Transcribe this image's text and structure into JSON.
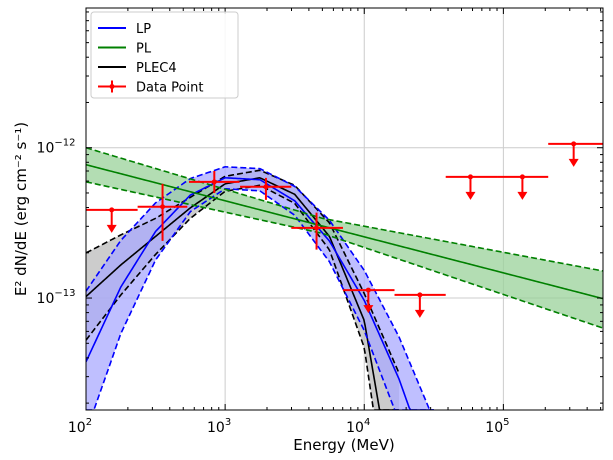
{
  "chart_data": {
    "type": "line",
    "title": "",
    "xlabel": "Energy (MeV)",
    "ylabel": "E² dN/dE (erg cm⁻² s⁻¹)",
    "xscale": "log",
    "yscale": "log",
    "xlim": [
      100,
      520000
    ],
    "ylim": [
      1.8e-14,
      8.5e-12
    ],
    "grid": true,
    "legend_position": "top-left",
    "x_ticks": [
      {
        "base": "10",
        "exp": "2",
        "value": 100
      },
      {
        "base": "10",
        "exp": "3",
        "value": 1000
      },
      {
        "base": "10",
        "exp": "4",
        "value": 10000
      },
      {
        "base": "10",
        "exp": "5",
        "value": 100000
      }
    ],
    "y_ticks": [
      {
        "base": "10",
        "exp": "−13",
        "value": 1e-13
      },
      {
        "base": "10",
        "exp": "−12",
        "value": 1e-12
      }
    ],
    "models": [
      {
        "name": "LP",
        "color": "#0000ff",
        "fill": "#aaaaff",
        "log10_x": [
          2.0,
          2.25,
          2.5,
          2.75,
          3.0,
          3.25,
          3.5,
          3.75,
          4.0,
          4.25,
          4.5
        ],
        "log10_y": [
          -13.424,
          -12.927,
          -12.557,
          -12.315,
          -12.2,
          -12.213,
          -12.353,
          -12.621,
          -13.016,
          -13.539,
          -14.19
        ],
        "log10_y_upper": [
          -12.954,
          -12.617,
          -12.367,
          -12.205,
          -12.127,
          -12.139,
          -12.257,
          -12.483,
          -12.816,
          -13.259,
          -13.81
        ],
        "log10_y_lower": [
          -13.894,
          -13.237,
          -12.747,
          -12.425,
          -12.273,
          -12.287,
          -12.449,
          -12.759,
          -13.216,
          -13.819,
          -14.57
        ]
      },
      {
        "name": "PL",
        "color": "#008000",
        "fill": "#99d199",
        "log10_x": [
          2.0,
          3.7,
          5.716
        ],
        "log10_y": [
          -12.113,
          -12.521,
          -13.004
        ],
        "log10_y_upper": [
          -12.0,
          -12.47,
          -12.82
        ],
        "log10_y_lower": [
          -12.227,
          -12.57,
          -13.2
        ]
      },
      {
        "name": "PLEC4",
        "color": "#000000",
        "fill": "#bbbbbb",
        "log10_x": [
          2.0,
          2.25,
          2.5,
          2.75,
          3.0,
          3.25,
          3.5,
          3.75,
          4.0,
          4.25
        ],
        "log10_y": [
          -12.99,
          -12.78,
          -12.59,
          -12.4,
          -12.24,
          -12.2,
          -12.31,
          -12.59,
          -13.15,
          -14.5
        ],
        "log10_y_upper": [
          -12.7,
          -12.58,
          -12.47,
          -12.33,
          -12.19,
          -12.15,
          -12.25,
          -12.5,
          -12.97,
          -13.5
        ],
        "log10_y_lower": [
          -13.28,
          -12.98,
          -12.71,
          -12.47,
          -12.29,
          -12.25,
          -12.37,
          -12.68,
          -13.33,
          -14.9
        ]
      }
    ],
    "data_points": {
      "name": "Data Point",
      "color": "#ff0000",
      "points": [
        {
          "x": 153,
          "x_lo": 100,
          "x_hi": 235,
          "y": 3.86e-13,
          "upper_limit": true
        },
        {
          "x": 355,
          "x_lo": 235,
          "x_hi": 535,
          "y": 4.05e-13,
          "y_lo": 2.4e-13,
          "y_hi": 5.75e-13,
          "upper_limit": false
        },
        {
          "x": 836,
          "x_lo": 550,
          "x_hi": 1270,
          "y": 5.93e-13,
          "y_lo": 5e-13,
          "y_hi": 7e-13,
          "upper_limit": false
        },
        {
          "x": 1965,
          "x_lo": 1280,
          "x_hi": 2990,
          "y": 5.5e-13,
          "y_lo": 4.5e-13,
          "y_hi": 6.3e-13,
          "upper_limit": false
        },
        {
          "x": 4540,
          "x_lo": 2990,
          "x_hi": 7030,
          "y": 2.93e-13,
          "y_lo": 2.1e-13,
          "y_hi": 3.7e-13,
          "upper_limit": false
        },
        {
          "x": 10700,
          "x_lo": 7030,
          "x_hi": 16500,
          "y": 1.13e-13,
          "upper_limit": true
        },
        {
          "x": 25100,
          "x_lo": 16500,
          "x_hi": 38500,
          "y": 1.05e-13,
          "upper_limit": true
        },
        {
          "x": 58000,
          "x_lo": 38500,
          "x_hi": 90000,
          "y": 6.4e-13,
          "upper_limit": true
        },
        {
          "x": 137000,
          "x_lo": 90000,
          "x_hi": 210000,
          "y": 6.4e-13,
          "upper_limit": true
        },
        {
          "x": 320000,
          "x_lo": 210000,
          "x_hi": 520000,
          "y": 1.06e-12,
          "upper_limit": true
        }
      ]
    },
    "legend": [
      "LP",
      "PL",
      "PLEC4",
      "Data Point"
    ]
  }
}
